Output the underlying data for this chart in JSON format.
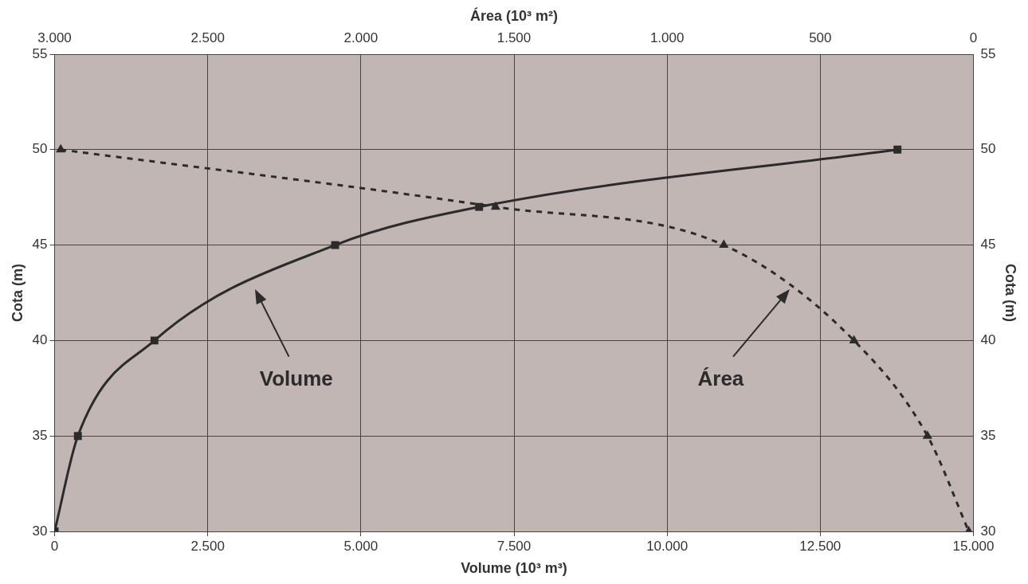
{
  "chart_data": {
    "type": "line",
    "xlabel": "Volume (10³ m³)",
    "x2label": "Área (10³ m²)",
    "ylabel": "Cota (m)",
    "y2label": "Cota (m)",
    "xlim": [
      0,
      15000
    ],
    "xticks": [
      0,
      {
        "value": 2500,
        "label": "2.500"
      },
      {
        "value": 5000,
        "label": "5.000"
      },
      {
        "value": 7500,
        "label": "7.500"
      },
      {
        "value": 10000,
        "label": "10.000"
      },
      {
        "value": 12500,
        "label": "12.500"
      },
      {
        "value": 15000,
        "label": "15.000"
      }
    ],
    "x2lim": [
      3000,
      0
    ],
    "x2ticks": [
      {
        "value": 3000,
        "label": "3.000"
      },
      {
        "value": 2500,
        "label": "2.500"
      },
      {
        "value": 2000,
        "label": "2.000"
      },
      {
        "value": 1500,
        "label": "1.500"
      },
      {
        "value": 1000,
        "label": "1.000"
      },
      500,
      0
    ],
    "ylim": [
      30,
      55
    ],
    "yticks": [
      30,
      35,
      40,
      45,
      50,
      55
    ],
    "y2lim": [
      30,
      55
    ],
    "y2ticks": [
      30,
      35,
      40,
      45,
      50,
      55
    ],
    "grid": true,
    "legend": false,
    "series": [
      {
        "color": "#2b2b2b",
        "marker": "square",
        "line_style": "solid",
        "x": [
          0,
          380,
          1630,
          4580,
          6930,
          13760
        ],
        "values": [
          30,
          35,
          40,
          45,
          47,
          50
        ]
      },
      {
        "color": "#2b2b2b",
        "marker": "triangle",
        "line_style": "dashed",
        "axis": "x2",
        "x": [
          2980,
          1560,
          815,
          390,
          150,
          15
        ],
        "values": [
          50,
          47,
          45,
          40,
          35,
          30
        ]
      }
    ],
    "annotations": [
      "Volume",
      "Área"
    ]
  }
}
